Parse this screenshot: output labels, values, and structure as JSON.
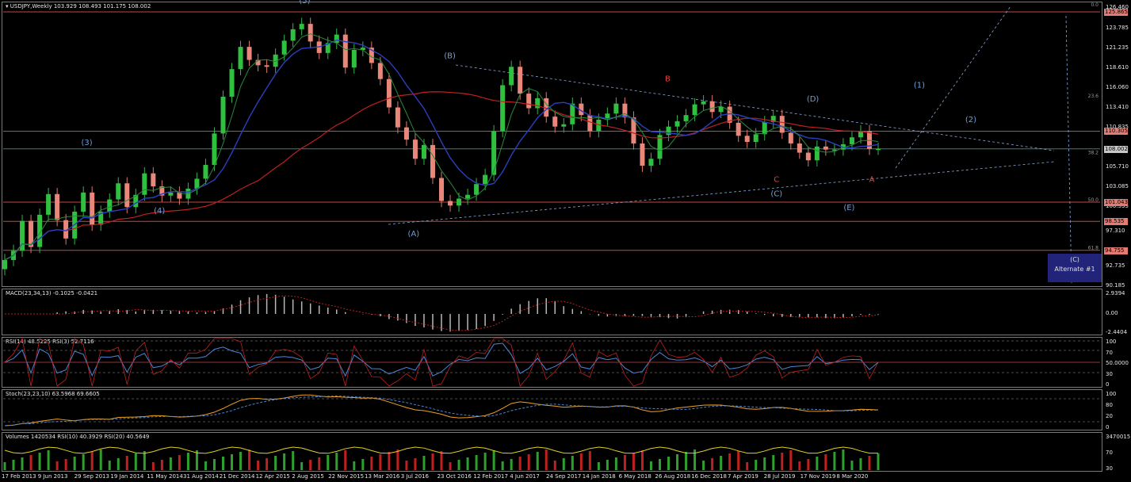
{
  "chart_data": {
    "type": "candlestick",
    "symbol_header": "USDJPY,Weekly  103.929 108.493 101.175 108.002",
    "symbol": "USDJPY",
    "timeframe": "Weekly",
    "ohlc_last": {
      "open": 103.929,
      "high": 108.493,
      "low": 101.175,
      "close": 108.002
    },
    "price_ticks": [
      "126.460",
      "123.785",
      "121.235",
      "118.610",
      "116.060",
      "113.410",
      "110.835",
      "108.002",
      "105.710",
      "103.085",
      "100.535",
      "97.310",
      "92.735",
      "90.185"
    ],
    "price_levels": [
      {
        "label": "125.865",
        "price": 125.865,
        "color": "#e37b73"
      },
      {
        "label": "110.305",
        "price": 110.305,
        "color": "#e37b73"
      },
      {
        "label": "108.002",
        "price": 108.002,
        "color": "#c8c8c8"
      },
      {
        "label": "101.043",
        "price": 101.043,
        "color": "#e37b73"
      },
      {
        "label": "98.535",
        "price": 98.535,
        "color": "#e37b73"
      },
      {
        "label": "94.755",
        "price": 94.755,
        "color": "#e37b73"
      }
    ],
    "fib_labels": [
      {
        "text": "0.0",
        "price": 126.46
      },
      {
        "text": "23.6",
        "price": 114.6
      },
      {
        "text": "38.2",
        "price": 107.2
      },
      {
        "text": "50.0",
        "price": 101.04
      },
      {
        "text": "61.8",
        "price": 94.8
      }
    ],
    "wave_labels": [
      {
        "text": "(5)",
        "x": "2 Aug 2015",
        "price": 127.0,
        "color": "#6f9fd8"
      },
      {
        "text": "(3)",
        "x": "29 Sep 2013",
        "price": 108.5,
        "color": "#6f9fd8"
      },
      {
        "text": "(4)",
        "x": "11 May 2014",
        "price": 99.6,
        "color": "#6f9fd8"
      },
      {
        "text": "(B)",
        "x": "23 Oct 2016",
        "price": 119.8,
        "color": "#6f9fd8"
      },
      {
        "text": "(A)",
        "x": "3 Jul 2016",
        "price": 96.6,
        "color": "#6f9fd8"
      },
      {
        "text": "B",
        "x": "26 Aug 2018",
        "price": 116.8,
        "color": "#e04040"
      },
      {
        "text": "A",
        "x": "14 Jun 2018",
        "price": 103.7,
        "color": "#e04040"
      },
      {
        "text": "C",
        "x": "28 Jul 2019",
        "price": 103.7,
        "color": "#e04040"
      },
      {
        "text": "(C)",
        "x": "28 Jul 2019",
        "price": 101.8,
        "color": "#6f9fd8"
      },
      {
        "text": "(D)",
        "x": "17 Nov 2019",
        "price": 114.2,
        "color": "#6f9fd8"
      },
      {
        "text": "(E)",
        "x": "8 Mar 2020",
        "price": 100.0,
        "color": "#6f9fd8"
      },
      {
        "text": "(1)",
        "x": "8 Mar 2020",
        "price": 116.0,
        "color": "#6f9fd8"
      },
      {
        "text": "(2)",
        "x": "8 Mar 2020",
        "price": 111.5,
        "color": "#6f9fd8"
      },
      {
        "text": "(C)",
        "x": "8 Mar 2020",
        "price": 94.2,
        "color": "#6f9fd8"
      }
    ],
    "alternate_label": "Alternate #1",
    "alternate_wave": "(C)",
    "date_ticks": [
      "17 Feb 2013",
      "9 Jun 2013",
      "29 Sep 2013",
      "19 Jan 2014",
      "11 May 2014",
      "31 Aug 2014",
      "21 Dec 2014",
      "12 Apr 2015",
      "2 Aug 2015",
      "22 Nov 2015",
      "13 Mar 2016",
      "3 Jul 2016",
      "23 Oct 2016",
      "12 Feb 2017",
      "4 Jun 2017",
      "24 Sep 2017",
      "14 Jan 2018",
      "6 May 2018",
      "26 Aug 2018",
      "16 Dec 2018",
      "7 Apr 2019",
      "28 Jul 2019",
      "17 Nov 2019",
      "8 Mar 2020"
    ],
    "price_path_weekly_close": [
      93.5,
      94.7,
      98.6,
      95.2,
      99.4,
      102.1,
      98.7,
      96.3,
      99.8,
      102.3,
      98.1,
      99.8,
      101.4,
      103.5,
      100.4,
      102.0,
      104.8,
      103.1,
      101.9,
      102.3,
      101.5,
      102.8,
      104.1,
      105.9,
      110.0,
      114.8,
      118.4,
      121.3,
      119.6,
      118.9,
      118.7,
      120.3,
      122.1,
      123.6,
      124.3,
      122.0,
      120.5,
      121.8,
      122.9,
      118.6,
      120.9,
      121.2,
      119.2,
      117.1,
      113.4,
      110.8,
      109.2,
      106.7,
      108.5,
      104.2,
      101.2,
      100.6,
      101.5,
      102.0,
      103.4,
      104.6,
      110.3,
      116.3,
      118.7,
      115.2,
      113.3,
      114.6,
      112.2,
      110.9,
      111.2,
      113.9,
      112.4,
      110.3,
      111.8,
      112.6,
      113.9,
      112.1,
      108.7,
      105.8,
      106.7,
      109.8,
      110.9,
      111.6,
      112.4,
      113.8,
      114.2,
      112.8,
      113.5,
      111.4,
      109.7,
      108.9,
      109.9,
      111.5,
      112.3,
      110.1,
      108.7,
      107.5,
      106.5,
      108.3,
      107.9,
      107.9,
      108.6,
      109.5,
      110.3,
      108.0,
      108.0
    ],
    "indicators": [
      {
        "name": "MACD",
        "label": "MACD(23,34,13) -0.1025 -0.0421",
        "ticks": [
          "2.9394",
          "0.00",
          "-2.4404"
        ],
        "last": -0.1025,
        "signal": -0.0421
      },
      {
        "name": "RSI",
        "label": "RSI(14) 48.5225  RSI(3) 52.7116",
        "ticks": [
          "100",
          "70",
          "50.0000",
          "30",
          "0"
        ],
        "rsi14": 48.5225,
        "rsi3": 52.7116
      },
      {
        "name": "Stoch",
        "label": "Stoch(23,23,10) 63.5968 69.6605",
        "ticks": [
          "100",
          "80",
          "20",
          "0"
        ],
        "k": 63.5968,
        "d": 69.6605
      },
      {
        "name": "Volumes",
        "label": "Volumes 1420534  RSI(10) 40.3929  RSI(20) 40.5649",
        "ticks": [
          "3470015",
          "70",
          "30"
        ],
        "volume": 1420534,
        "rsi10": 40.3929,
        "rsi20": 40.5649
      }
    ],
    "ylim": [
      90.185,
      127.0
    ]
  }
}
